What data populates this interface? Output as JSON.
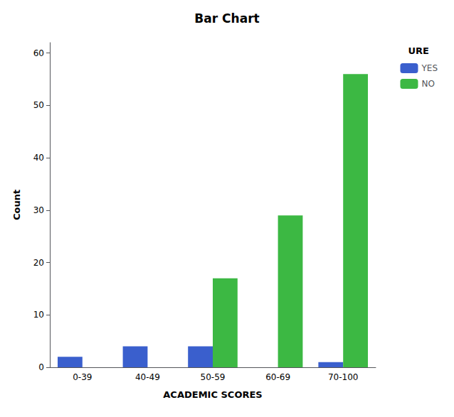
{
  "chart_data": {
    "type": "bar",
    "title": "Bar Chart",
    "xlabel": "ACADEMIC SCORES",
    "ylabel": "Count",
    "categories": [
      "0-39",
      "40-49",
      "50-59",
      "60-69",
      "70-100"
    ],
    "series": [
      {
        "name": "YES",
        "color": "#3a5fcd",
        "values": [
          2,
          4,
          4,
          0,
          1
        ]
      },
      {
        "name": "NO",
        "color": "#3cb843",
        "values": [
          0,
          0,
          17,
          29,
          56
        ]
      }
    ],
    "legend_title": "URE",
    "ylim": [
      0,
      62
    ],
    "yticks": [
      0,
      10,
      20,
      30,
      40,
      50,
      60
    ],
    "grid": false,
    "legend": "upper right"
  }
}
